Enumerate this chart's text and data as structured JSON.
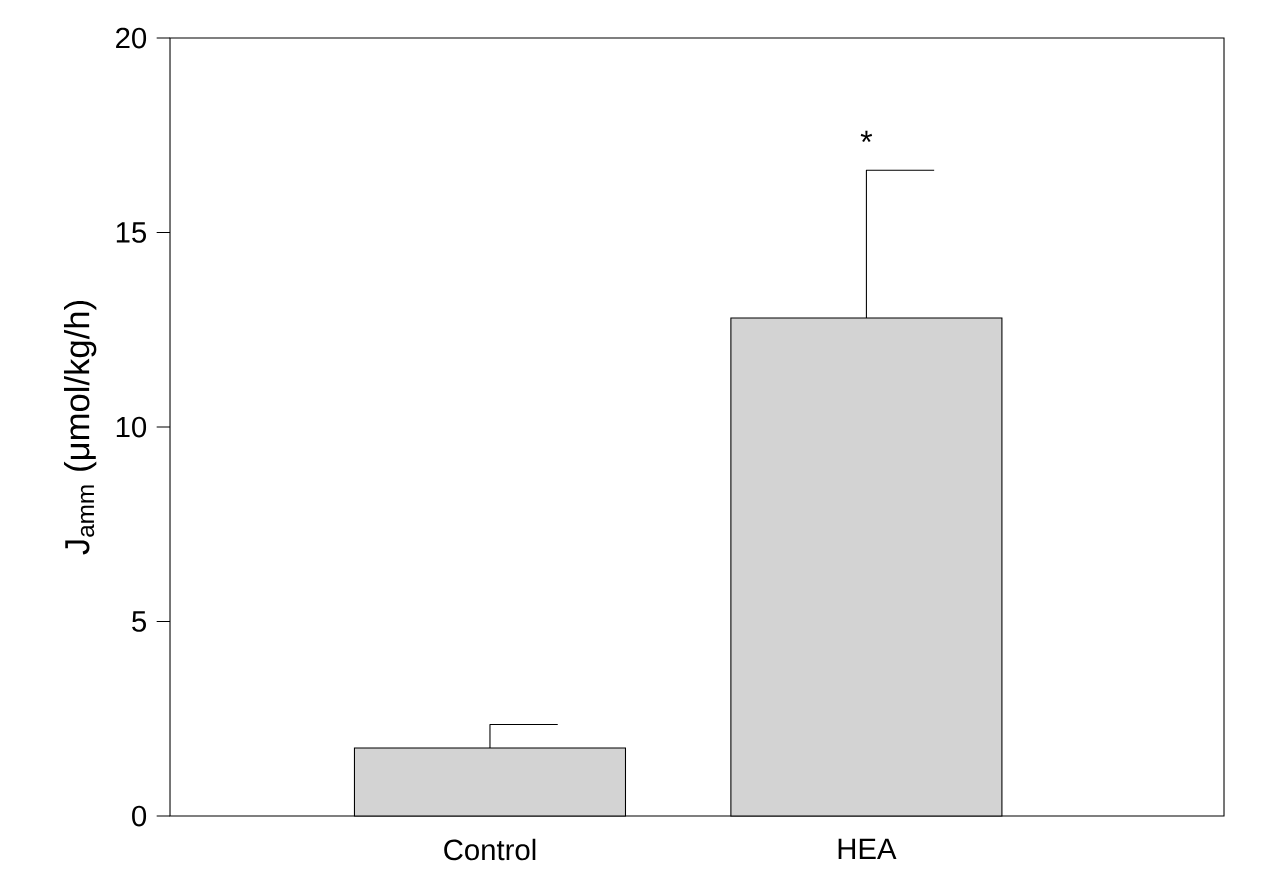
{
  "chart_data": {
    "type": "bar",
    "ylabel": "J$_{amm}$ (μmol/kg/h)",
    "categories": [
      "Control",
      "HEA"
    ],
    "values": [
      1.75,
      12.8
    ],
    "errors": [
      [
        1.75,
        2.35
      ],
      [
        12.8,
        16.6
      ]
    ],
    "color": "#d3d3d3",
    "ylim": [
      0,
      20
    ],
    "yticks": [
      0,
      5,
      10,
      15,
      20
    ],
    "annotations": [
      "*"
    ]
  }
}
